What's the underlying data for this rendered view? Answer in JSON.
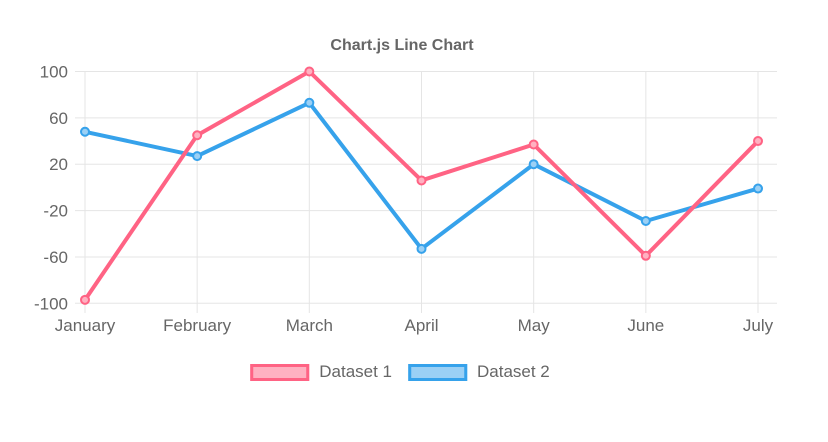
{
  "chart_data": {
    "type": "line",
    "title": "Chart.js Line Chart",
    "categories": [
      "January",
      "February",
      "March",
      "April",
      "May",
      "June",
      "July"
    ],
    "series": [
      {
        "name": "Dataset 1",
        "values": [
          -97,
          45,
          100,
          6,
          37,
          -59,
          40
        ],
        "line_color": "#ff6384",
        "fill_color": "#ffb1c1"
      },
      {
        "name": "Dataset 2",
        "values": [
          48,
          27,
          73,
          -53,
          20,
          -29,
          -1
        ],
        "line_color": "#36a2eb",
        "fill_color": "#9bd0f5"
      }
    ],
    "y_ticks": [
      100,
      60,
      20,
      -20,
      -60,
      -100
    ],
    "ylim": [
      -100,
      100
    ],
    "grid": true,
    "legend_position": "bottom",
    "axis_text_color": "#666666",
    "grid_color": "#e5e5e5",
    "background_color": "#ffffff"
  }
}
